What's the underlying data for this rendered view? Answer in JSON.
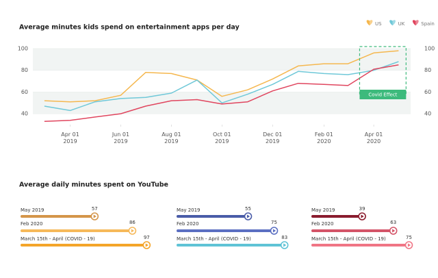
{
  "chart_data": [
    {
      "type": "line",
      "title": "Average minutes kids spend on entertainment apps per day",
      "x": [
        "2019-03-01",
        "2019-04-01",
        "2019-05-01",
        "2019-06-01",
        "2019-07-01",
        "2019-08-01",
        "2019-09-01",
        "2019-10-01",
        "2019-11-01",
        "2019-12-01",
        "2020-01-01",
        "2020-02-01",
        "2020-03-01",
        "2020-04-01",
        "2020-05-01"
      ],
      "series": [
        {
          "name": "US",
          "color": "#f5b74e",
          "values": [
            52,
            51,
            52,
            57,
            78,
            77,
            71,
            56,
            62,
            72,
            84,
            86,
            86,
            96,
            98
          ]
        },
        {
          "name": "UK",
          "color": "#6fc8d8",
          "values": [
            47,
            43,
            51,
            54,
            55,
            59,
            71,
            50,
            58,
            67,
            79,
            77,
            76,
            80,
            88
          ]
        },
        {
          "name": "Spain",
          "color": "#e0455e",
          "values": [
            33,
            34,
            37,
            40,
            47,
            52,
            53,
            49,
            51,
            61,
            68,
            67,
            66,
            81,
            85
          ]
        }
      ],
      "xlim": [
        "2019-02-01",
        "2020-06-01"
      ],
      "xticks": [
        {
          "value": "2019-04-01",
          "label": [
            "Apr 01",
            "2019"
          ]
        },
        {
          "value": "2019-06-01",
          "label": [
            "Jun 01",
            "2019"
          ]
        },
        {
          "value": "2019-08-01",
          "label": [
            "Aug 01",
            "2019"
          ]
        },
        {
          "value": "2019-10-01",
          "label": [
            "Oct 01",
            "2019"
          ]
        },
        {
          "value": "2019-12-01",
          "label": [
            "Dec 01",
            "2019"
          ]
        },
        {
          "value": "2020-02-01",
          "label": [
            "Feb 01",
            "2020"
          ]
        },
        {
          "value": "2020-04-01",
          "label": [
            "Apr 01",
            "2020"
          ]
        }
      ],
      "ylim": [
        30,
        105
      ],
      "yticks": [
        40,
        60,
        80,
        100
      ],
      "y2lim": [
        30,
        105
      ],
      "y2ticks": [
        40,
        60,
        80,
        100
      ],
      "grid": true,
      "legend": "top-right",
      "annotation": {
        "text": "Covid Effect",
        "x": [
          "2020-03-15",
          "2020-05-10"
        ],
        "color": "#3dba7c"
      }
    },
    {
      "type": "progress",
      "title": "Average daily minutes spent on YouTube",
      "xlim": [
        0,
        100
      ],
      "panels": [
        {
          "categories": [
            "May 2019",
            "Feb 2020",
            "March 15th - April (COVID - 19)"
          ],
          "values": [
            57,
            86,
            97
          ],
          "colors": [
            "#d4954a",
            "#f6b95a",
            "#f4a52a"
          ]
        },
        {
          "categories": [
            "May 2019",
            "Feb 2020",
            "March 15th - April (COVID - 19)"
          ],
          "values": [
            55,
            75,
            83
          ],
          "colors": [
            "#4a5ca8",
            "#5b6fc2",
            "#5fc3d6"
          ]
        },
        {
          "categories": [
            "May 2019",
            "Feb 2020",
            "March 15th - April (COVID - 19)"
          ],
          "values": [
            39,
            63,
            75
          ],
          "colors": [
            "#8a1c2e",
            "#d45468",
            "#f07585"
          ]
        }
      ]
    }
  ]
}
